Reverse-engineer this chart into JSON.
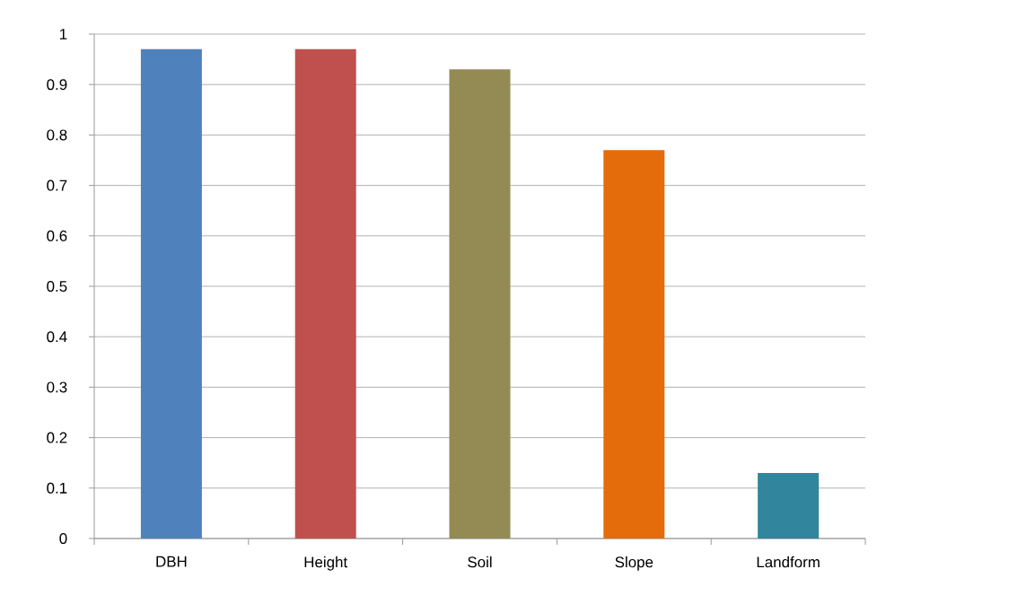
{
  "chart_data": {
    "type": "bar",
    "categories": [
      "DBH",
      "Height",
      "Soil",
      "Slope",
      "Landform"
    ],
    "values": [
      0.97,
      0.97,
      0.93,
      0.77,
      0.13
    ],
    "colors": [
      "#4f81bd",
      "#c0504d",
      "#948a54",
      "#e46c0a",
      "#31859c"
    ],
    "ylim": [
      0,
      1
    ],
    "yticks": [
      0,
      0.1,
      0.2,
      0.3,
      0.4,
      0.5,
      0.6,
      0.7,
      0.8,
      0.9,
      1
    ],
    "grid": "y"
  }
}
